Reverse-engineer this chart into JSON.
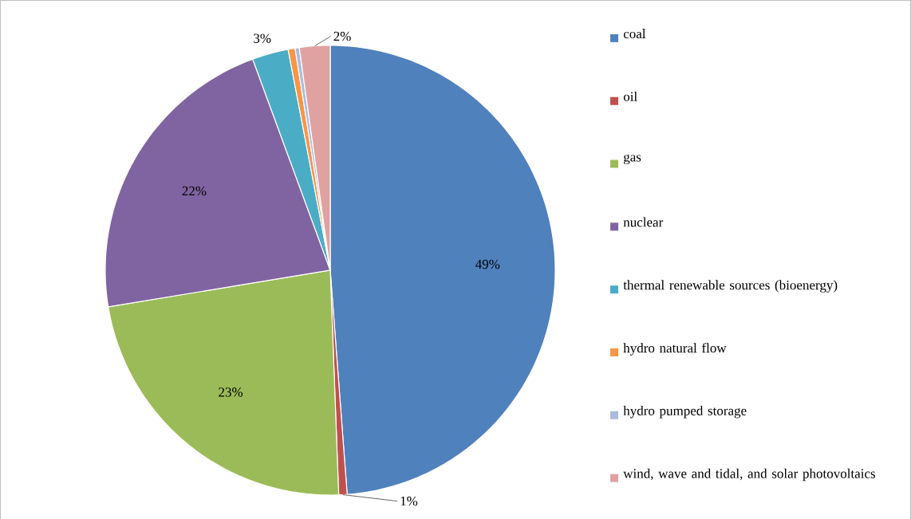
{
  "chart_data": {
    "type": "pie",
    "categories": [
      "coal",
      "oil",
      "gas",
      "nuclear",
      "thermal renewable sources (bioenergy)",
      "hydro natural flow",
      "hydro pumped storage",
      "wind, wave and tidal, and solar photovoltaics"
    ],
    "values": [
      48.8,
      0.6,
      23,
      22,
      2.6,
      0.5,
      0.3,
      2.2
    ],
    "value_labels": [
      "49%",
      "1%",
      "23%",
      "22%",
      "3%",
      null,
      null,
      "2%"
    ],
    "colors": [
      "#4f81bd",
      "#c0504d",
      "#9bbb59",
      "#8064a2",
      "#4bacc6",
      "#f79646",
      "#a9bce0",
      "#e0a2a0"
    ],
    "legend": "right"
  }
}
